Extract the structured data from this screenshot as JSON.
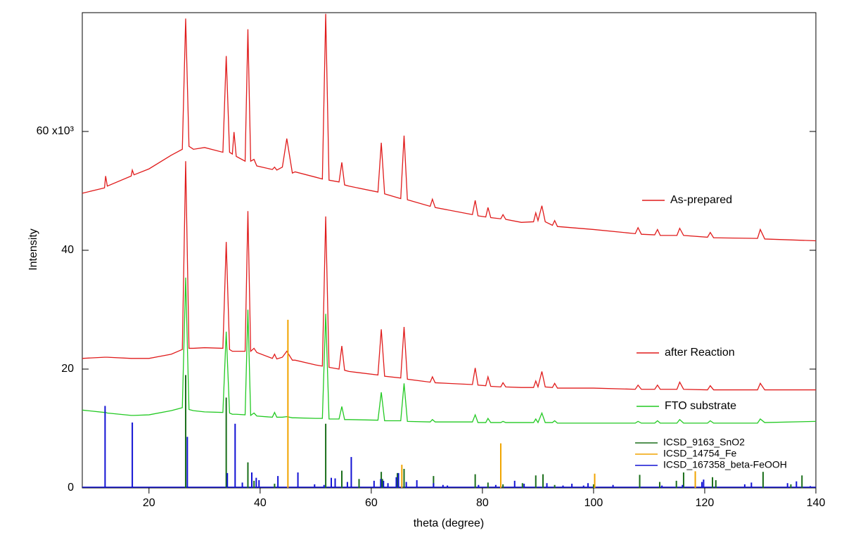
{
  "chart_data": {
    "type": "line",
    "x_label": "theta (degree)",
    "y_label": "Intensity",
    "xlim": [
      8,
      140
    ],
    "ylim": [
      0,
      80
    ],
    "xticks": [
      20,
      40,
      60,
      80,
      100,
      120,
      140
    ],
    "yticks": [
      0,
      20,
      40,
      {
        "value": 60,
        "label": "60 x10³"
      }
    ],
    "x": [
      8,
      12,
      12.2,
      12.5,
      16.8,
      17,
      17.3,
      20,
      24,
      26,
      26.6,
      27.2,
      28,
      30,
      33.3,
      33.9,
      34.5,
      35,
      35.3,
      35.7,
      37.3,
      37.8,
      38.3,
      38.9,
      39.4,
      42.2,
      42.6,
      43,
      44,
      44.8,
      45.8,
      46.3,
      50,
      51.2,
      51.8,
      52.4,
      54.2,
      54.7,
      55.2,
      56,
      61.2,
      61.8,
      62.4,
      65.3,
      65.9,
      66.5,
      70.6,
      71,
      71.5,
      78.2,
      78.7,
      79.2,
      80.6,
      81,
      81.5,
      83.3,
      83.7,
      84.2,
      87,
      89.2,
      89.6,
      90,
      90.7,
      91.3,
      92.6,
      93,
      93.5,
      100,
      107.5,
      108,
      108.6,
      111,
      111.5,
      112,
      115,
      115.5,
      116.2,
      120.5,
      121,
      121.6,
      129.5,
      130,
      130.8,
      140
    ],
    "series": [
      {
        "name": "As-prepared",
        "color": "#e01b1b",
        "style": "line",
        "values": [
          49.6,
          50.5,
          52.5,
          50.8,
          52.5,
          53.5,
          52.7,
          53.7,
          56,
          57,
          79,
          57.5,
          57,
          57.3,
          56.5,
          72.7,
          56.5,
          56.2,
          59.9,
          55.8,
          55,
          77.2,
          55,
          55.3,
          54.2,
          53.6,
          54,
          53.5,
          54,
          58.8,
          53,
          53.2,
          52.3,
          52,
          79.8,
          51.8,
          51.5,
          54.8,
          51,
          50.8,
          49.8,
          58.1,
          49.5,
          48.7,
          59.3,
          48.5,
          47.4,
          48.6,
          47.2,
          46,
          48.4,
          45.8,
          45.6,
          47.2,
          45.5,
          45.3,
          46,
          45.2,
          44.7,
          44.8,
          46.3,
          45,
          47.5,
          44.8,
          44.2,
          45,
          44,
          43.5,
          42.8,
          43.8,
          42.7,
          42.6,
          43.5,
          42.5,
          42.5,
          43.7,
          42.5,
          42.2,
          43,
          42.1,
          42,
          43.5,
          41.9,
          41.6
        ]
      },
      {
        "name": "after Reaction",
        "color": "#e01b1b",
        "style": "line",
        "values": [
          21.8,
          22,
          22,
          22,
          21.8,
          21.8,
          21.8,
          21.8,
          22.5,
          23.3,
          55,
          23.5,
          23.5,
          23.6,
          23.5,
          41.4,
          23.3,
          23,
          23,
          23,
          23,
          46.6,
          23,
          23.5,
          22.8,
          21.8,
          22.5,
          21.7,
          22,
          23,
          21.5,
          21.5,
          20.7,
          20.5,
          45.7,
          20.3,
          20,
          23.9,
          19.8,
          19.6,
          19,
          26.7,
          18.8,
          18.5,
          27.1,
          18.3,
          17.8,
          18.7,
          17.7,
          17.4,
          20.2,
          17.3,
          17.2,
          18.7,
          17.1,
          17,
          17.7,
          17,
          16.9,
          16.9,
          18,
          17,
          19.6,
          17,
          16.9,
          17.6,
          16.8,
          16.8,
          16.6,
          17.3,
          16.6,
          16.6,
          17.3,
          16.6,
          16.6,
          17.8,
          16.6,
          16.5,
          17.2,
          16.5,
          16.5,
          17.6,
          16.5,
          16.5
        ]
      },
      {
        "name": "FTO substrate",
        "color": "#22c922",
        "style": "line",
        "values": [
          13.1,
          12.7,
          12.7,
          12.6,
          12.2,
          12.2,
          12.2,
          12.3,
          13,
          13.5,
          35.4,
          13.2,
          13,
          12.8,
          12.7,
          26.3,
          12.6,
          12.4,
          12.4,
          12.4,
          12.3,
          30,
          12.2,
          12.6,
          12.1,
          11.9,
          12.7,
          11.9,
          11.9,
          12,
          11.8,
          11.8,
          11.7,
          11.7,
          29.3,
          11.6,
          11.6,
          13.7,
          11.5,
          11.5,
          11.4,
          16.1,
          11.3,
          11.3,
          17.6,
          11.2,
          11.1,
          11.5,
          11.1,
          11.1,
          12.3,
          11,
          11,
          11.7,
          11,
          11,
          11.2,
          11,
          11,
          11,
          11.6,
          11,
          12.6,
          11,
          11,
          11.3,
          10.9,
          10.9,
          10.9,
          11.2,
          10.9,
          10.9,
          11.3,
          10.9,
          10.9,
          11.5,
          10.9,
          10.9,
          11.3,
          10.9,
          10.9,
          11.6,
          11,
          11.2
        ]
      },
      {
        "name": "ICSD_9163_SnO2",
        "color": "#1a6e1a",
        "style": "stick",
        "x": [
          26.6,
          33.9,
          37.8,
          38.9,
          42.6,
          51.8,
          54.7,
          57.8,
          61.8,
          62,
          64.7,
          65.9,
          71.2,
          78.7,
          81,
          83.7,
          87.2,
          89.6,
          90.9,
          93,
          100,
          108.3,
          111.9,
          114.9,
          116.2,
          121.4,
          122,
          130.5,
          135.5,
          137.5
        ],
        "values": [
          19,
          15.2,
          4.3,
          1.2,
          0.7,
          10.8,
          2.9,
          1.5,
          2.7,
          1.5,
          2.5,
          3.2,
          2,
          2.3,
          0.9,
          0.6,
          0.8,
          2.1,
          2.3,
          0.5,
          0.6,
          2.2,
          1,
          1.2,
          2.6,
          1.8,
          1.3,
          2.7,
          0.6,
          2.1
        ]
      },
      {
        "name": "ICSD_14754_Fe",
        "color": "#f0a400",
        "style": "stick",
        "x": [
          45,
          65.5,
          83.3,
          100.2,
          118.3
        ],
        "values": [
          28.3,
          3.9,
          7.5,
          2.4,
          2.8
        ]
      },
      {
        "name": "ICSD_167358_beta-FeOOH",
        "color": "#1212d4",
        "style": "stick",
        "x": [
          12.1,
          17,
          26.9,
          34.1,
          35.5,
          36.8,
          38.5,
          39.3,
          39.8,
          43.2,
          46.8,
          49.8,
          51.5,
          52.8,
          53.5,
          55.7,
          56.4,
          60.5,
          61.7,
          62.2,
          63,
          64.5,
          64.9,
          66.3,
          68.2,
          71.2,
          72.9,
          73.7,
          79.3,
          82.4,
          85.8,
          87.5,
          91.6,
          94.5,
          96.1,
          98.2,
          99,
          103.5,
          112.3,
          116,
          119.5,
          119.8,
          127.2,
          128.4,
          134.9,
          136.5,
          139
        ],
        "values": [
          13.8,
          11,
          8.6,
          2.5,
          10.8,
          0.9,
          2.6,
          1.7,
          1.3,
          2,
          2.6,
          0.6,
          0.5,
          1.7,
          1.6,
          1,
          5.2,
          1.2,
          1.5,
          1.2,
          0.8,
          1.8,
          2.5,
          1,
          1.3,
          0.8,
          0.5,
          0.4,
          0.5,
          0.5,
          1.2,
          0.7,
          0.8,
          0.4,
          0.7,
          0.4,
          0.8,
          0.5,
          0.4,
          0.5,
          1,
          1.4,
          0.6,
          0.9,
          0.8,
          1.1,
          0.3
        ]
      }
    ]
  }
}
